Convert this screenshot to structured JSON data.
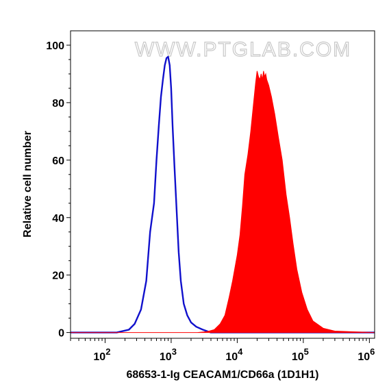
{
  "watermark": "WWW.PTGLAB.COM",
  "chart_data": {
    "type": "area",
    "xlabel": "68653-1-Ig CEACAM1/CD66a (1D1H1)",
    "ylabel": "Relative cell number",
    "xscale": "log",
    "xlim": [
      30,
      1200000
    ],
    "ylim": [
      -2,
      105
    ],
    "x_ticks": [
      {
        "value": 100,
        "base": "10",
        "exp": "2"
      },
      {
        "value": 1000,
        "base": "10",
        "exp": "3"
      },
      {
        "value": 10000,
        "base": "10",
        "exp": "4"
      },
      {
        "value": 100000,
        "base": "10",
        "exp": "5"
      },
      {
        "value": 1000000,
        "base": "10",
        "exp": "6"
      }
    ],
    "y_ticks": [
      0,
      20,
      40,
      60,
      80,
      100
    ],
    "grid": false,
    "legend": "none",
    "series": [
      {
        "style": "line",
        "color": "#1010cc",
        "points": [
          [
            30,
            0
          ],
          [
            150,
            0
          ],
          [
            230,
            1
          ],
          [
            280,
            3
          ],
          [
            350,
            8
          ],
          [
            420,
            18
          ],
          [
            480,
            35
          ],
          [
            550,
            45
          ],
          [
            600,
            60
          ],
          [
            650,
            72
          ],
          [
            700,
            82
          ],
          [
            750,
            88
          ],
          [
            800,
            93
          ],
          [
            850,
            95.5
          ],
          [
            900,
            96
          ],
          [
            950,
            93
          ],
          [
            1000,
            85
          ],
          [
            1050,
            72
          ],
          [
            1120,
            58
          ],
          [
            1200,
            44
          ],
          [
            1300,
            28
          ],
          [
            1400,
            18
          ],
          [
            1550,
            10
          ],
          [
            1750,
            6
          ],
          [
            2000,
            3.5
          ],
          [
            2400,
            2
          ],
          [
            3000,
            1
          ],
          [
            4000,
            0
          ],
          [
            1200000,
            0
          ]
        ]
      },
      {
        "style": "filled",
        "color": "#ff0000",
        "points": [
          [
            30,
            0
          ],
          [
            2500,
            0
          ],
          [
            3500,
            0.3
          ],
          [
            4500,
            1
          ],
          [
            5500,
            3
          ],
          [
            6500,
            6
          ],
          [
            7500,
            12
          ],
          [
            8500,
            18
          ],
          [
            10000,
            27
          ],
          [
            11000,
            34
          ],
          [
            12000,
            44
          ],
          [
            13000,
            55
          ],
          [
            14500,
            62
          ],
          [
            16000,
            70
          ],
          [
            17500,
            79
          ],
          [
            19000,
            87
          ],
          [
            20000,
            91
          ],
          [
            21000,
            89
          ],
          [
            22000,
            88
          ],
          [
            23000,
            90
          ],
          [
            24000,
            88
          ],
          [
            25000,
            91
          ],
          [
            26000,
            89
          ],
          [
            27000,
            90
          ],
          [
            28000,
            88
          ],
          [
            30000,
            86
          ],
          [
            33000,
            82
          ],
          [
            37000,
            76
          ],
          [
            42000,
            68
          ],
          [
            48000,
            60
          ],
          [
            55000,
            48
          ],
          [
            62000,
            40
          ],
          [
            70000,
            31
          ],
          [
            80000,
            22
          ],
          [
            95000,
            14
          ],
          [
            115000,
            8
          ],
          [
            140000,
            4
          ],
          [
            200000,
            1.5
          ],
          [
            300000,
            0.5
          ],
          [
            1200000,
            0
          ]
        ]
      }
    ]
  }
}
